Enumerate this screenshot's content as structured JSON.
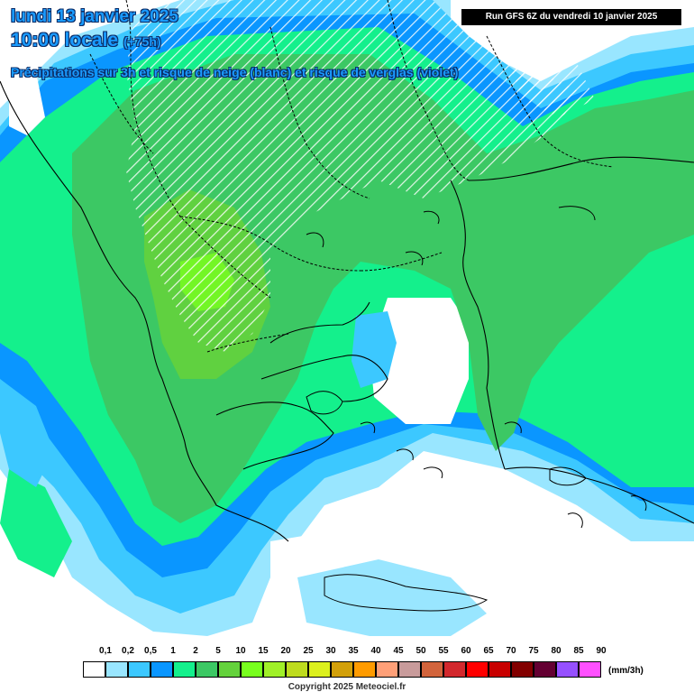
{
  "header": {
    "title_line1": "lundi 13 janvier 2025",
    "title_line2_main": "10:00 locale",
    "title_line2_lead": "(+75h)",
    "subtitle": "Précipitations sur 3h et risque de neige (blanc) et risque de verglas (violet)",
    "run_info": "Run GFS 6Z du vendredi 10 janvier 2025"
  },
  "legend": {
    "unit": "(mm/3h)",
    "labels": [
      "0,1",
      "0,2",
      "0,5",
      "1",
      "2",
      "5",
      "10",
      "15",
      "20",
      "25",
      "30",
      "35",
      "40",
      "45",
      "50",
      "55",
      "60",
      "65",
      "70",
      "75",
      "80",
      "85",
      "90"
    ],
    "colors": [
      "#ffffff",
      "#99e6ff",
      "#3cc8ff",
      "#0a96ff",
      "#14f08c",
      "#3cc864",
      "#64d23c",
      "#78ff1e",
      "#a0f028",
      "#bedc1e",
      "#dcf01e",
      "#d2a00a",
      "#ff9b00",
      "#ffa078",
      "#c89b9b",
      "#d2643c",
      "#d2282d",
      "#ff0000",
      "#c80000",
      "#820000",
      "#640032",
      "#9650ff",
      "#ff50ff"
    ]
  },
  "copyright": "Copyright 2025 Meteociel.fr",
  "colors": {
    "title_text": "#1a9bff",
    "title_outline": "#0b2c66"
  }
}
